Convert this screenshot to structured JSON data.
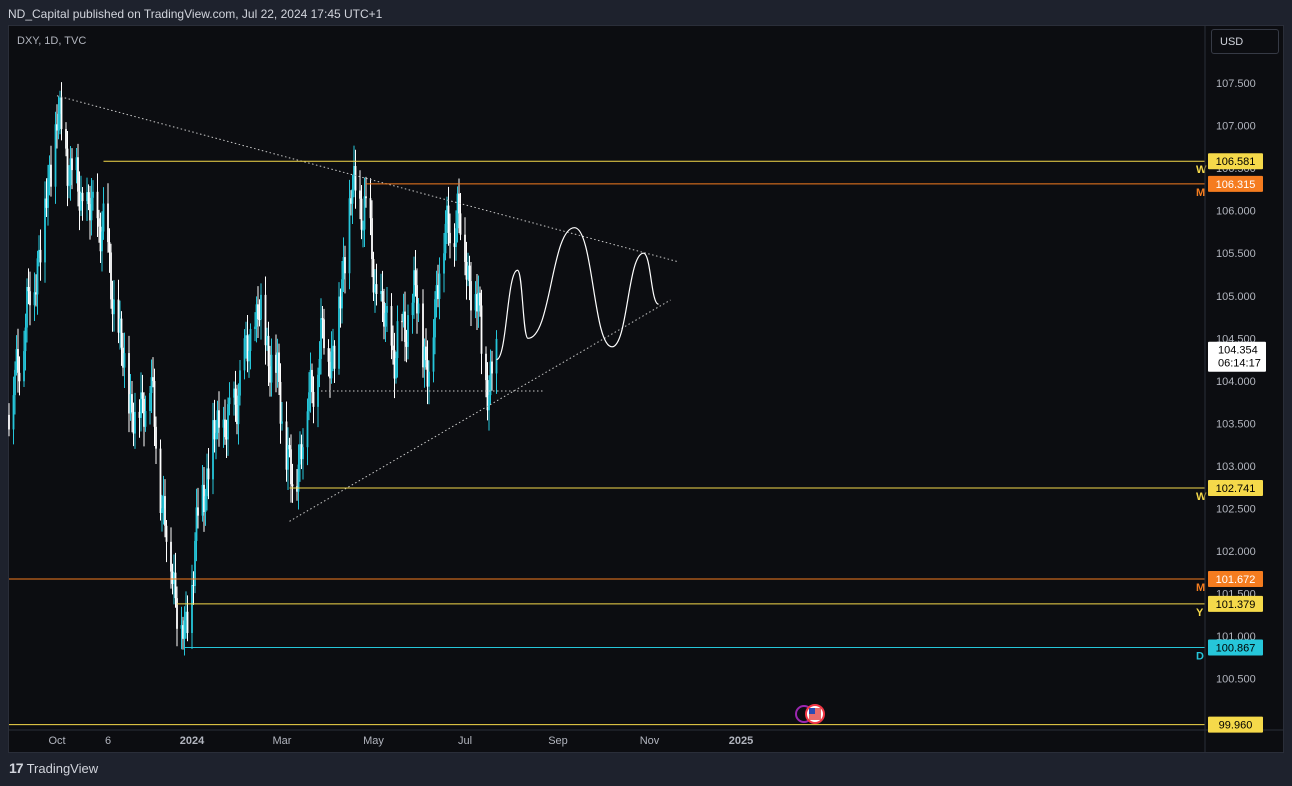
{
  "header": {
    "publisher_line": "ND_Capital published on TradingView.com, Jul 22, 2024 17:45 UTC+1"
  },
  "symbol": {
    "label": "DXY, 1D, TVC"
  },
  "currency_button": {
    "label": "USD"
  },
  "footer": {
    "brand": "TradingView",
    "logo_text": "17"
  },
  "chart_data": {
    "type": "candlestick",
    "title": "DXY, 1D, TVC",
    "ylim": [
      99.7,
      108.2
    ],
    "yticks": [
      "107.500",
      "107.000",
      "106.500",
      "106.000",
      "105.500",
      "105.000",
      "104.500",
      "104.000",
      "103.500",
      "103.000",
      "102.500",
      "102.000",
      "101.500",
      "101.000",
      "100.500"
    ],
    "x_ticks": [
      "Oct",
      "6",
      "2024",
      "Mar",
      "May",
      "Jul",
      "Sep",
      "Nov",
      "2025"
    ],
    "price_path": [
      {
        "date": "2023-09-01",
        "value": 103.6
      },
      {
        "date": "2023-09-12",
        "value": 104.7
      },
      {
        "date": "2023-09-22",
        "value": 105.6
      },
      {
        "date": "2023-10-03",
        "value": 107.1
      },
      {
        "date": "2023-10-13",
        "value": 106.4
      },
      {
        "date": "2023-10-23",
        "value": 106.0
      },
      {
        "date": "2023-11-03",
        "value": 105.8
      },
      {
        "date": "2023-11-14",
        "value": 104.4
      },
      {
        "date": "2023-11-24",
        "value": 103.5
      },
      {
        "date": "2023-12-04",
        "value": 104.0
      },
      {
        "date": "2023-12-14",
        "value": 102.3
      },
      {
        "date": "2023-12-27",
        "value": 100.9
      },
      {
        "date": "2024-01-05",
        "value": 102.4
      },
      {
        "date": "2024-01-17",
        "value": 103.4
      },
      {
        "date": "2024-01-26",
        "value": 103.5
      },
      {
        "date": "2024-02-02",
        "value": 104.0
      },
      {
        "date": "2024-02-14",
        "value": 104.8
      },
      {
        "date": "2024-02-27",
        "value": 104.0
      },
      {
        "date": "2024-03-08",
        "value": 102.7
      },
      {
        "date": "2024-03-19",
        "value": 103.8
      },
      {
        "date": "2024-03-28",
        "value": 104.5
      },
      {
        "date": "2024-04-05",
        "value": 104.3
      },
      {
        "date": "2024-04-16",
        "value": 106.2
      },
      {
        "date": "2024-04-26",
        "value": 106.0
      },
      {
        "date": "2024-05-03",
        "value": 105.0
      },
      {
        "date": "2024-05-15",
        "value": 104.3
      },
      {
        "date": "2024-05-29",
        "value": 105.0
      },
      {
        "date": "2024-06-07",
        "value": 104.0
      },
      {
        "date": "2024-06-14",
        "value": 105.5
      },
      {
        "date": "2024-06-26",
        "value": 106.0
      },
      {
        "date": "2024-07-03",
        "value": 105.3
      },
      {
        "date": "2024-07-10",
        "value": 104.8
      },
      {
        "date": "2024-07-17",
        "value": 103.8
      },
      {
        "date": "2024-07-22",
        "value": 104.354
      }
    ],
    "projection_path": [
      {
        "date": "2024-07-22",
        "value": 104.25
      },
      {
        "date": "2024-08-05",
        "value": 105.3
      },
      {
        "date": "2024-08-12",
        "value": 104.5
      },
      {
        "date": "2024-09-12",
        "value": 105.8
      },
      {
        "date": "2024-10-07",
        "value": 104.4
      },
      {
        "date": "2024-10-28",
        "value": 105.5
      },
      {
        "date": "2024-11-07",
        "value": 104.9
      }
    ],
    "horizontal_levels": [
      {
        "value": 106.581,
        "label": "106.581",
        "tf": "W",
        "color": "#f5d94a",
        "text_color": "#000000"
      },
      {
        "value": 106.315,
        "label": "106.315",
        "tf": "M",
        "color": "#f57c1f",
        "text_color": "#ffffff"
      },
      {
        "value": 102.741,
        "label": "102.741",
        "tf": "W",
        "color": "#f5d94a",
        "text_color": "#000000"
      },
      {
        "value": 101.672,
        "label": "101.672",
        "tf": "M",
        "color": "#f57c1f",
        "text_color": "#ffffff"
      },
      {
        "value": 101.379,
        "label": "101.379",
        "tf": "Y",
        "color": "#f5d94a",
        "text_color": "#000000"
      },
      {
        "value": 100.867,
        "label": "100.867",
        "tf": "D",
        "color": "#26c6da",
        "text_color": "#000000"
      },
      {
        "value": 99.96,
        "label": "99.960",
        "tf": "",
        "color": "#f5d94a",
        "text_color": "#000000"
      }
    ],
    "trendlines": [
      {
        "name": "upper",
        "style": "dotted",
        "from": {
          "date": "2023-10-03",
          "value": 107.35
        },
        "to": {
          "date": "2024-11-20",
          "value": 105.4
        }
      },
      {
        "name": "lower",
        "style": "dotted",
        "from": {
          "date": "2024-03-06",
          "value": 102.35
        },
        "to": {
          "date": "2024-11-15",
          "value": 104.95
        }
      },
      {
        "name": "support",
        "style": "dotted",
        "from": {
          "date": "2024-03-27",
          "value": 103.88
        },
        "to": {
          "date": "2024-08-23",
          "value": 103.88
        }
      }
    ],
    "last_price": {
      "value": 104.354,
      "label": "104.354",
      "countdown": "06:14:17"
    },
    "colors": {
      "up": "#26c6da",
      "down": "#ffffff",
      "background": "#0c0d11",
      "grid": "#1a1d26"
    },
    "grid": false,
    "legend": "none"
  }
}
